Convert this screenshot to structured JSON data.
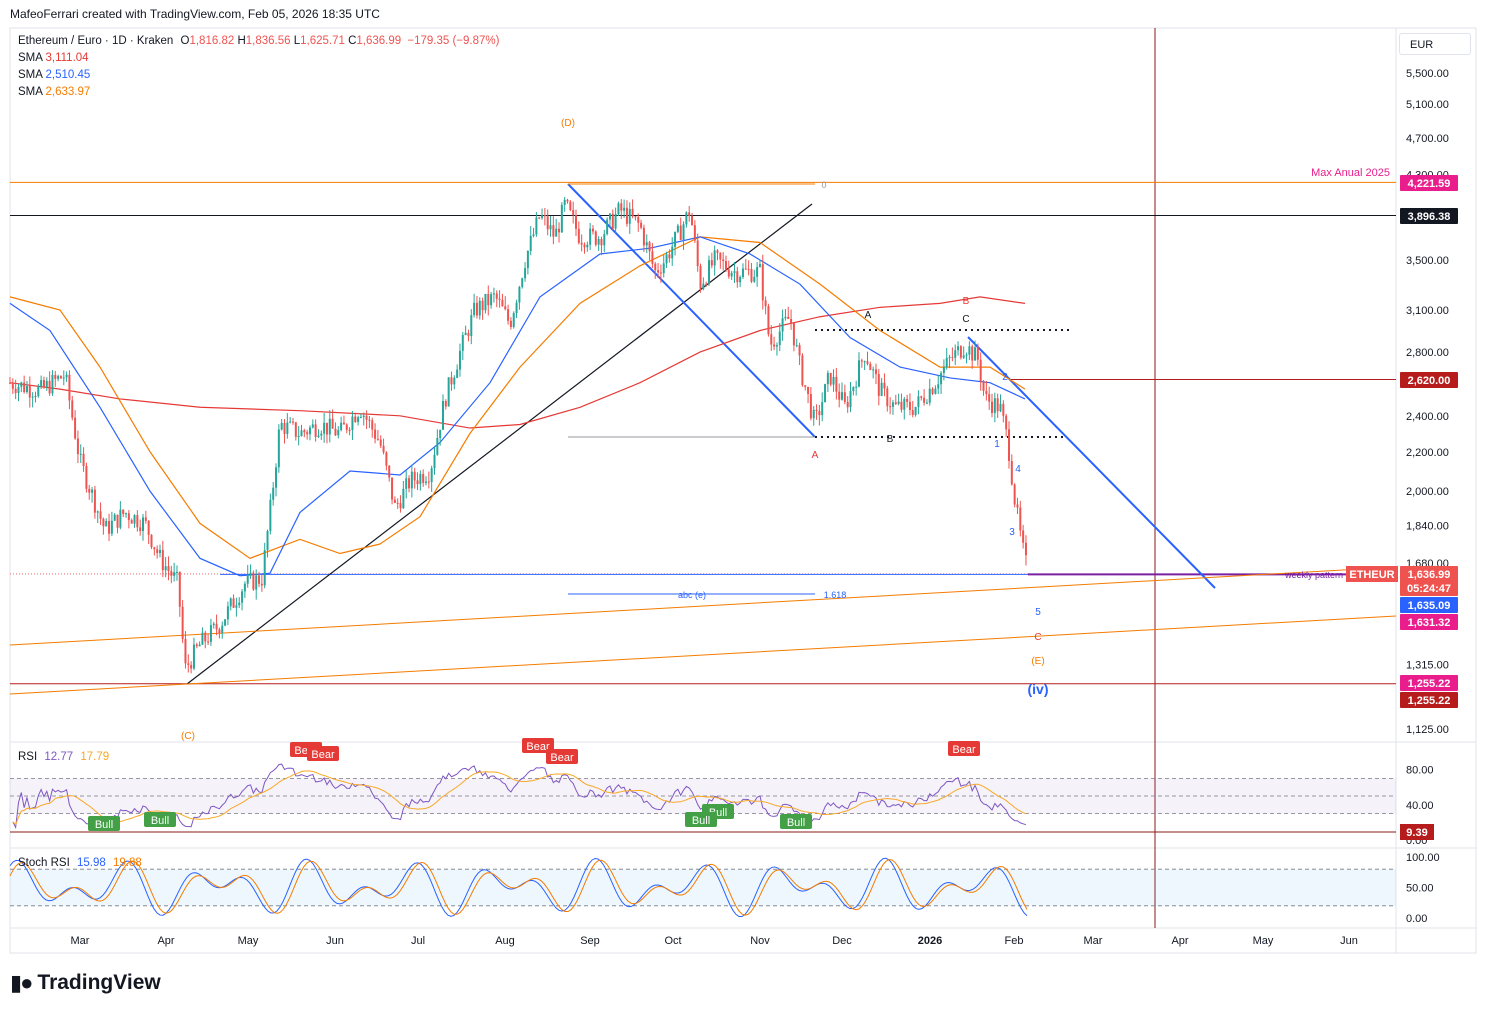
{
  "header": {
    "attribution": "MafeoFerrari created with TradingView.com, Feb 05, 2026 18:35 UTC"
  },
  "legend": {
    "symbol": "Ethereum / Euro · 1D · Kraken",
    "open_label": "O",
    "open": "1,816.82",
    "high_label": "H",
    "high": "1,836.56",
    "low_label": "L",
    "low": "1,625.71",
    "close_label": "C",
    "close": "1,636.99",
    "change": "−179.35 (−9.87%)",
    "sma": [
      {
        "label": "SMA",
        "value": "3,111.04",
        "color": "#e53935"
      },
      {
        "label": "SMA",
        "value": "2,510.45",
        "color": "#2962ff"
      },
      {
        "label": "SMA",
        "value": "2,633.97",
        "color": "#f57c00"
      }
    ]
  },
  "currency": "EUR",
  "footer": {
    "brand": "TradingView"
  },
  "colors": {
    "up": "#26a69a",
    "down": "#ef5350",
    "blue_line": "#2962ff",
    "orange": "#f57c00",
    "red_sma": "#e53935",
    "maroon": "#8b1a1a",
    "magenta": "#e91e8c"
  },
  "chart_data": {
    "type": "candlestick",
    "log_scale": true,
    "x_ticks": [
      "Mar",
      "Apr",
      "May",
      "Jun",
      "Jul",
      "Aug",
      "Sep",
      "Oct",
      "Nov",
      "Dec",
      "2026",
      "Feb",
      "Mar",
      "Apr",
      "May",
      "Jun"
    ],
    "y_ticks": [
      "5,500.00",
      "5,100.00",
      "4,700.00",
      "4,300.00",
      "3,900.00",
      "3,500.00",
      "3,100.00",
      "2,800.00",
      "2,400.00",
      "2,200.00",
      "2,000.00",
      "1,840.00",
      "1,680.00",
      "1,315.00",
      "1,125.00"
    ],
    "price_tags": [
      {
        "value": "4,221.59",
        "color": "#e91e8c"
      },
      {
        "value": "3,896.38",
        "color": "#131722"
      },
      {
        "value": "2,620.00",
        "color": "#b71c1c"
      },
      {
        "value": "1,636.99",
        "color": "#ef5350"
      },
      {
        "value": "05:24:47",
        "color": "#ef5350"
      },
      {
        "value": "1,635.09",
        "color": "#2962ff"
      },
      {
        "value": "1,631.32",
        "color": "#e91e8c"
      },
      {
        "value": "1,255.22",
        "color": "#e91e8c"
      },
      {
        "value": "1,255.22",
        "color": "#b71c1c"
      }
    ],
    "symbol_tag": "ETHEUR",
    "annotations": {
      "max_anual": "Max Anual 2025",
      "weekly_pattern": "weekly pattern",
      "abc_e": "abc (e)",
      "fib": "1.618",
      "wave_D": "(D)",
      "wave_C": "(C)",
      "wave_E": "(E)",
      "wave_iv": "(iv)",
      "A_top": "A",
      "B_mid": "B",
      "B_red": "B",
      "C_top": "C",
      "A_red": "A",
      "C_red": "C",
      "w1": "1",
      "w2": "2",
      "w3": "3",
      "w4": "4",
      "w5": "5",
      "zero": "0"
    },
    "sma_values": [
      "3,111.04",
      "2,510.45",
      "2,633.97"
    ],
    "rsi": {
      "title": "RSI",
      "value": "12.77",
      "ma": "17.79",
      "y_ticks": [
        "80.00",
        "40.00",
        "0.00"
      ],
      "tag": "9.39",
      "labels": [
        "Bull",
        "Bull",
        "Bull",
        "Bull",
        "Bull",
        "Bear",
        "Bear",
        "Bear",
        "Bear",
        "Bear"
      ]
    },
    "stoch_rsi": {
      "title": "Stoch RSI",
      "k": "15.98",
      "d": "19.88",
      "y_ticks": [
        "100.00",
        "50.00",
        "0.00"
      ]
    }
  }
}
